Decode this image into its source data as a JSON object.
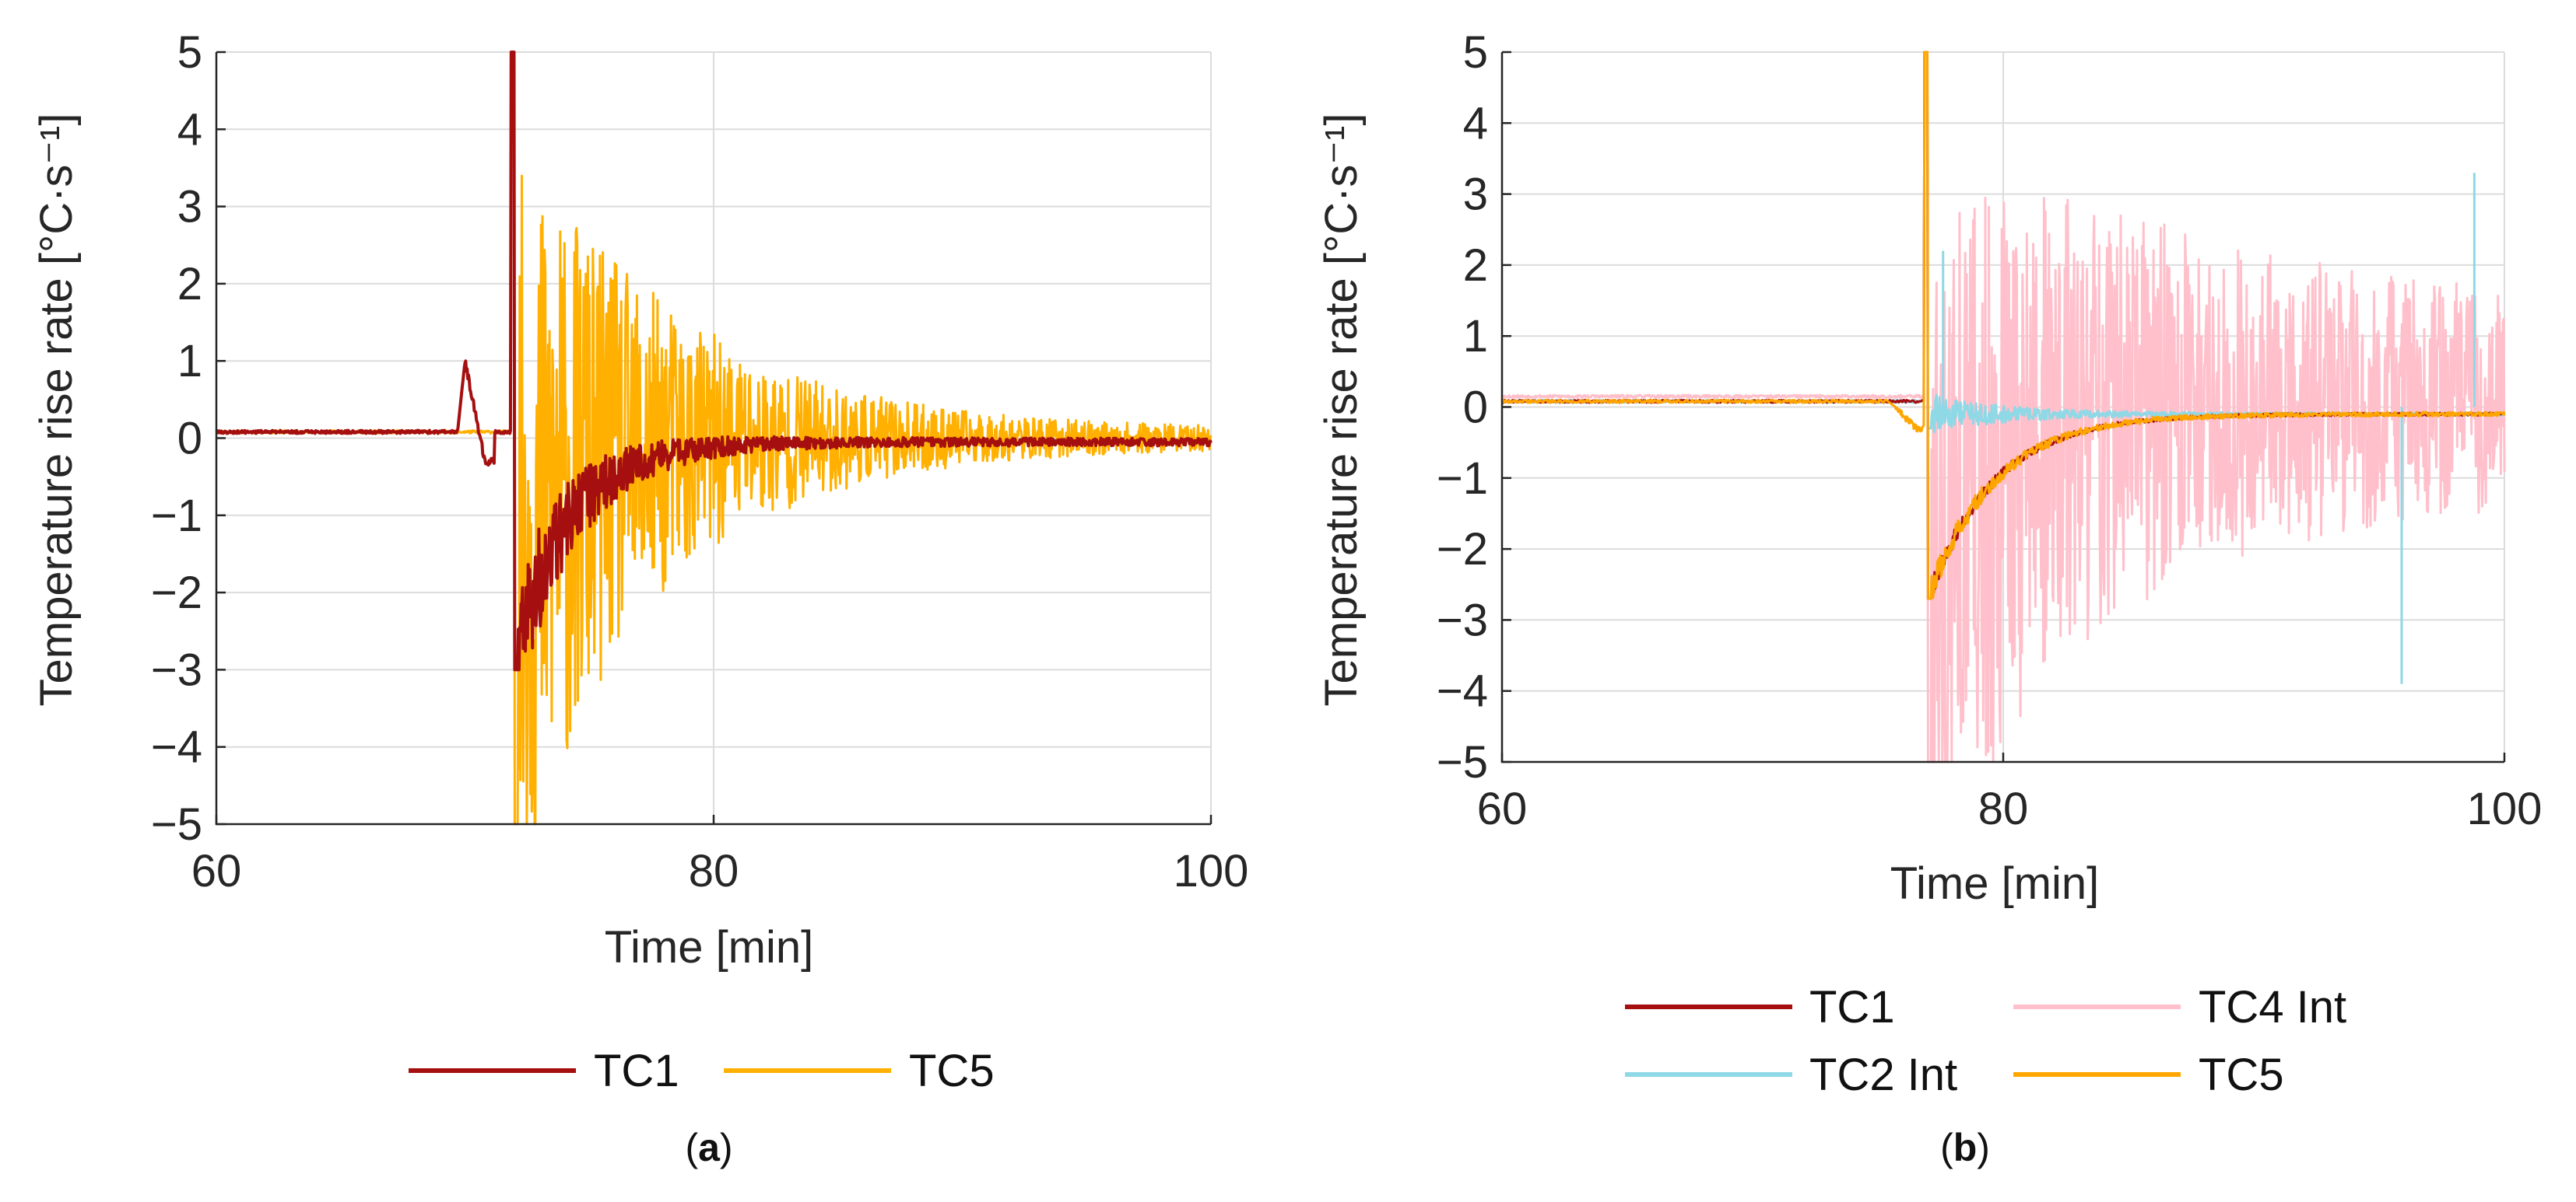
{
  "chart_data": [
    {
      "panel": "a",
      "type": "line",
      "caption_letter": "a",
      "xlabel": "Time [min]",
      "ylabel": "Temperature rise rate [°C·s⁻¹]",
      "xlim": [
        60,
        100
      ],
      "ylim": [
        -5,
        5
      ],
      "xticks": [
        60,
        80,
        100
      ],
      "yticks": [
        -5,
        -4,
        -3,
        -2,
        -1,
        0,
        1,
        2,
        3,
        4,
        5
      ],
      "ytick_labels": [
        "−5",
        "−4",
        "−3",
        "−2",
        "−1",
        "0",
        "1",
        "2",
        "3",
        "4",
        "5"
      ],
      "grid": true,
      "legend_position": "bottom",
      "series": [
        {
          "name": "TC5",
          "color": "#FFB000",
          "profile": {
            "baseline": 0.08,
            "onset": 72.0,
            "onset_pre_spike": null,
            "peak": 5,
            "trough": -5,
            "envelope_start": 5,
            "envelope_end": 0.12,
            "envelope_decay": 6,
            "mean_start": -1.5,
            "mean_decay": 2.5,
            "end_mean": 0.0
          }
        },
        {
          "name": "TC1",
          "color": "#A50F0F",
          "profile": {
            "baseline": 0.08,
            "onset": 72.0,
            "onset_pre_spike": {
              "x": 70.0,
              "peak": 1.0,
              "dip": -0.3
            },
            "peak": 5,
            "trough": -3.0,
            "envelope_start": 0.9,
            "envelope_end": 0.05,
            "envelope_decay": 3.5,
            "mean_start": -2.8,
            "mean_decay": 2.2,
            "end_mean": -0.05
          }
        }
      ]
    },
    {
      "panel": "b",
      "type": "line",
      "caption_letter": "b",
      "xlabel": "Time [min]",
      "ylabel": "Temperature rise rate [°C·s⁻¹]",
      "xlim": [
        60,
        100
      ],
      "ylim": [
        -5,
        5
      ],
      "xticks": [
        60,
        80,
        100
      ],
      "yticks": [
        -5,
        -4,
        -3,
        -2,
        -1,
        0,
        1,
        2,
        3,
        4,
        5
      ],
      "ytick_labels": [
        "−5",
        "−4",
        "−3",
        "−2",
        "−1",
        "0",
        "1",
        "2",
        "3",
        "4",
        "5"
      ],
      "grid": true,
      "legend_position": "bottom",
      "series": [
        {
          "name": "TC4 Int",
          "color": "#FFC0CB",
          "profile": {
            "baseline": 0.15,
            "onset": 77.0,
            "onset_pre_spike": null,
            "peak": 5,
            "trough": -5,
            "envelope_start": 5,
            "envelope_end": 1.3,
            "envelope_decay": 9,
            "mean_start": -2.5,
            "mean_decay": 3,
            "end_mean": 0.1
          }
        },
        {
          "name": "TC2 Int",
          "color": "#8FD8E6",
          "profile": {
            "baseline": 0.08,
            "onset": 77.0,
            "onset_pre_spike": null,
            "peak": 5,
            "trough": -0.3,
            "envelope_start": 0.3,
            "envelope_end": 0.02,
            "envelope_decay": 3,
            "mean_start": -0.1,
            "mean_decay": 3,
            "end_mean": -0.1
          },
          "spikes": [
            {
              "x": 77.6,
              "y": 2.2
            },
            {
              "x": 95.9,
              "y": -3.9
            },
            {
              "x": 98.8,
              "y": 3.3
            }
          ]
        },
        {
          "name": "TC1",
          "color": "#A50F0F",
          "profile": {
            "baseline": 0.08,
            "onset": 77.0,
            "onset_pre_spike": null,
            "peak": 5,
            "trough": -2.7,
            "envelope_start": 0.15,
            "envelope_end": 0.02,
            "envelope_decay": 3,
            "mean_start": -2.7,
            "mean_decay": 2.6,
            "end_mean": -0.1
          }
        },
        {
          "name": "TC5",
          "color": "#FFA500",
          "profile": {
            "baseline": 0.08,
            "onset": 77.0,
            "onset_pre_spike": {
              "x": 75.7,
              "peak": 0.0,
              "dip": -0.3
            },
            "peak": 5,
            "trough": -2.7,
            "envelope_start": 0.2,
            "envelope_end": 0.03,
            "envelope_decay": 3,
            "mean_start": -2.7,
            "mean_decay": 2.6,
            "end_mean": -0.1
          }
        }
      ]
    }
  ]
}
